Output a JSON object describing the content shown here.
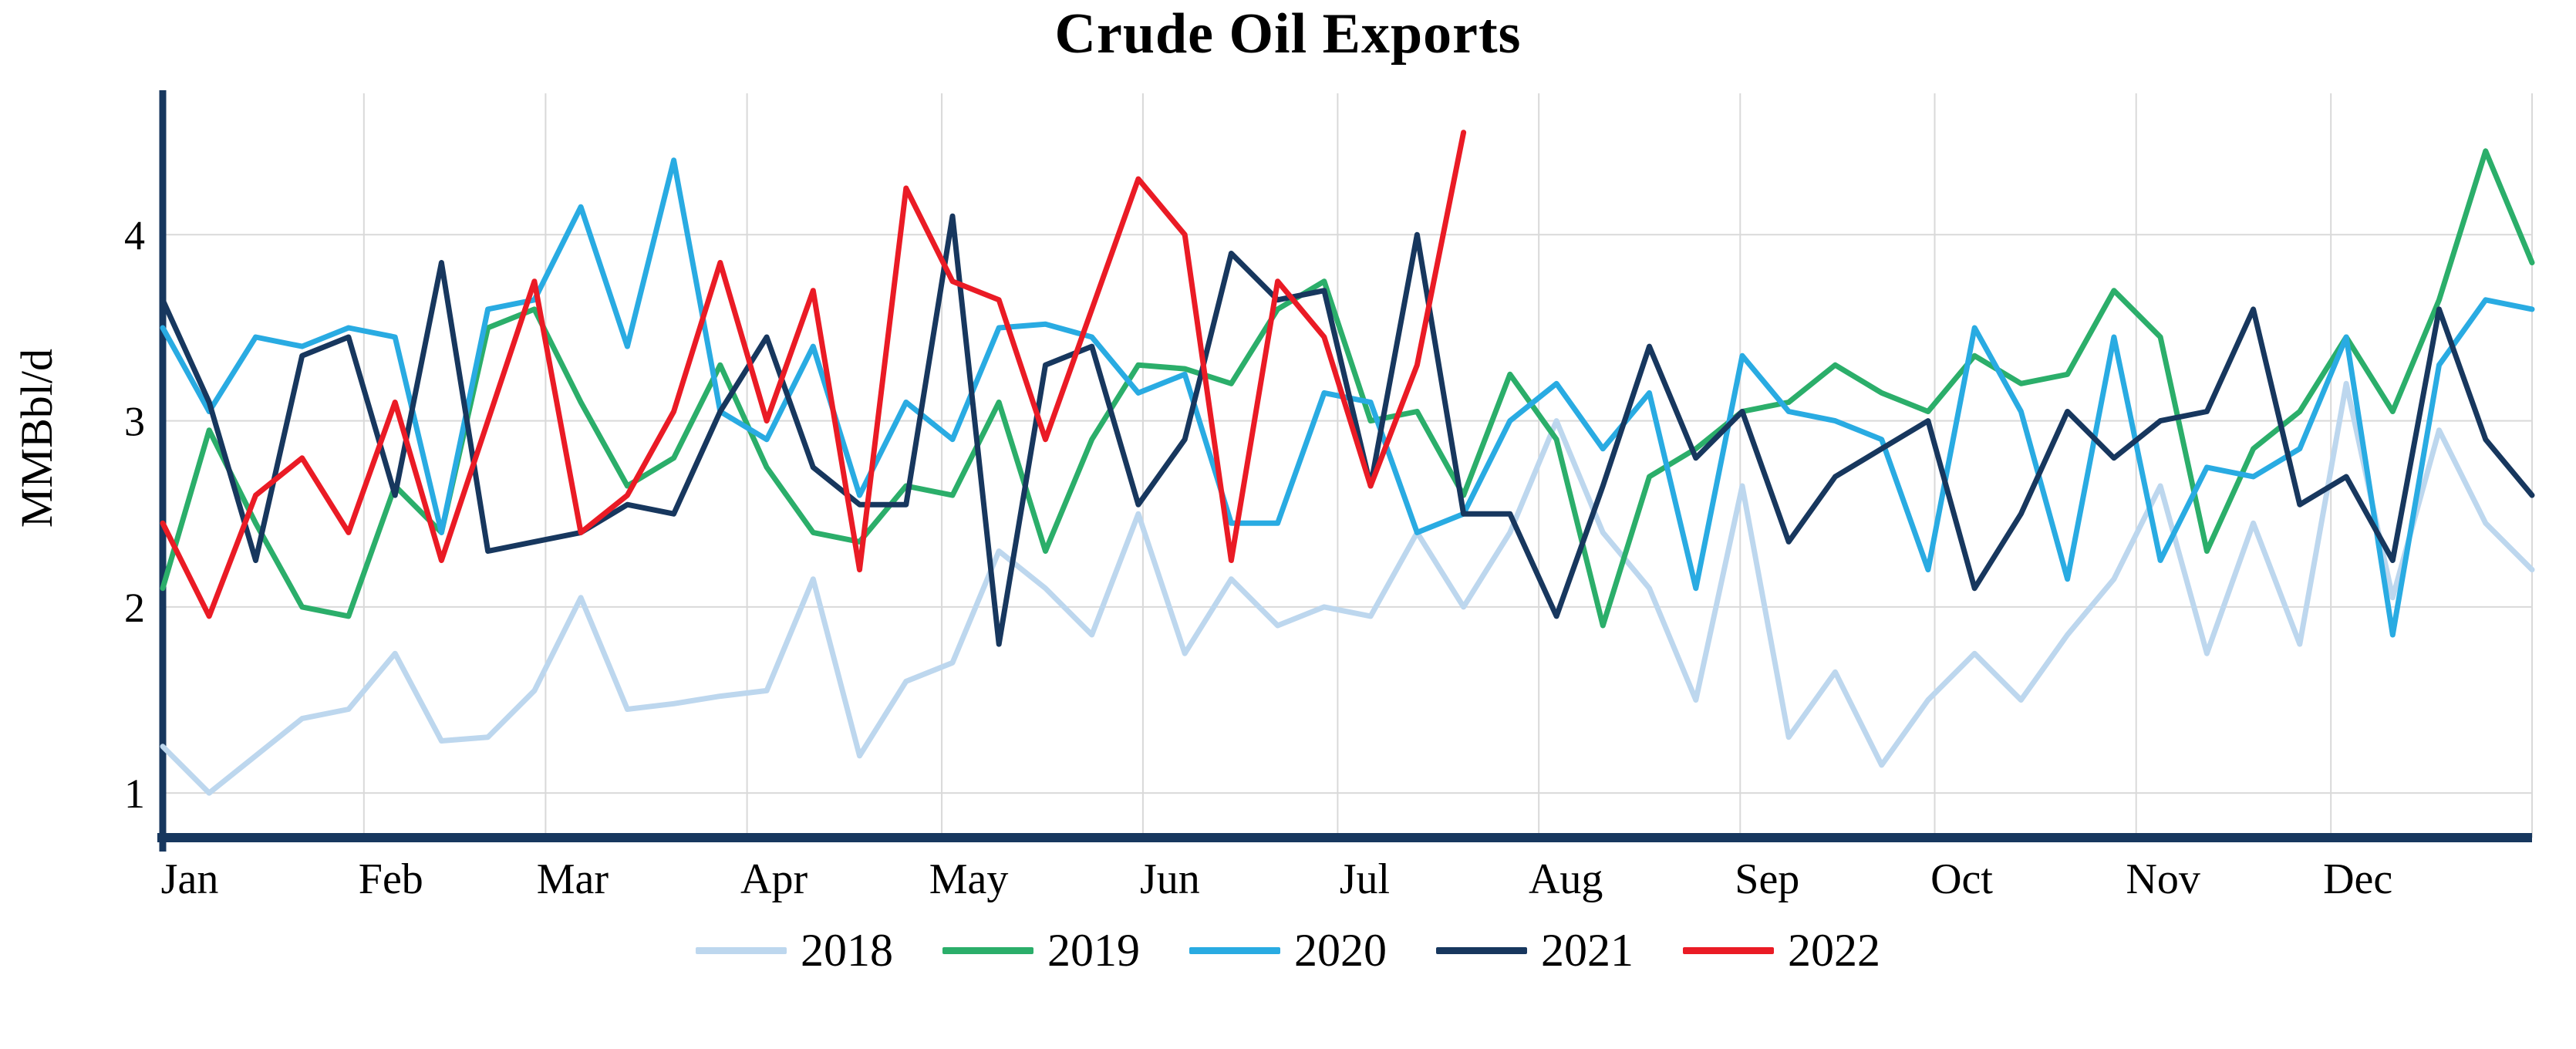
{
  "chart_data": {
    "type": "line",
    "title": "Crude Oil Exports",
    "ylabel": "MMBbl/d",
    "xlabel": "",
    "x_unit": "weekly observations across one calendar year",
    "xtick_labels": [
      "Jan",
      "Feb",
      "Mar",
      "Apr",
      "May",
      "Jun",
      "Jul",
      "Aug",
      "Sep",
      "Oct",
      "Nov",
      "Dec"
    ],
    "month_fracs": [
      0,
      0.0849,
      0.1616,
      0.2466,
      0.3288,
      0.4137,
      0.4959,
      0.5808,
      0.6658,
      0.7479,
      0.8329,
      0.9151
    ],
    "ytick_values": [
      1,
      2,
      3,
      4
    ],
    "ylim": [
      0.76,
      4.76
    ],
    "points_per_year": 52,
    "grid": true,
    "grid_color": "#d9d9d9",
    "axis_color": "#17375e",
    "background": "#ffffff",
    "legend_position": "bottom",
    "series": [
      {
        "name": "2018",
        "color": "#bdd7ee",
        "values": [
          1.25,
          1.0,
          1.2,
          1.4,
          1.45,
          1.75,
          1.28,
          1.3,
          1.55,
          2.05,
          1.45,
          1.48,
          1.52,
          1.55,
          2.15,
          1.2,
          1.6,
          1.7,
          2.3,
          2.1,
          1.85,
          2.5,
          1.75,
          2.15,
          1.9,
          2.0,
          1.95,
          2.4,
          2.0,
          2.4,
          3.0,
          2.4,
          2.1,
          1.5,
          2.65,
          1.3,
          1.65,
          1.15,
          1.5,
          1.75,
          1.5,
          1.85,
          2.15,
          2.65,
          1.75,
          2.45,
          1.8,
          3.2,
          2.05,
          2.95,
          2.45,
          2.2
        ]
      },
      {
        "name": "2019",
        "color": "#2bae6a",
        "values": [
          2.1,
          2.95,
          2.45,
          2.0,
          1.95,
          2.65,
          2.4,
          3.5,
          3.6,
          3.1,
          2.65,
          2.8,
          3.3,
          2.75,
          2.4,
          2.35,
          2.65,
          2.6,
          3.1,
          2.3,
          2.9,
          3.3,
          3.28,
          3.2,
          3.6,
          3.75,
          3.0,
          3.05,
          2.6,
          3.25,
          2.9,
          1.9,
          2.7,
          2.85,
          3.05,
          3.1,
          3.3,
          3.15,
          3.05,
          3.35,
          3.2,
          3.25,
          3.7,
          3.45,
          2.3,
          2.85,
          3.05,
          3.45,
          3.05,
          3.65,
          4.45,
          3.85
        ]
      },
      {
        "name": "2020",
        "color": "#29abe2",
        "values": [
          3.5,
          3.05,
          3.45,
          3.4,
          3.5,
          3.45,
          2.4,
          3.6,
          3.65,
          4.15,
          3.4,
          4.4,
          3.05,
          2.9,
          3.4,
          2.6,
          3.1,
          2.9,
          3.5,
          3.52,
          3.45,
          3.15,
          3.25,
          2.45,
          2.45,
          3.15,
          3.1,
          2.4,
          2.5,
          3.0,
          3.2,
          2.85,
          3.15,
          2.1,
          3.35,
          3.05,
          3.0,
          2.9,
          2.2,
          3.5,
          3.05,
          2.15,
          3.45,
          2.25,
          2.75,
          2.7,
          2.85,
          3.45,
          1.85,
          3.3,
          3.65,
          3.6
        ]
      },
      {
        "name": "2021",
        "color": "#17375e",
        "values": [
          3.65,
          3.1,
          2.25,
          3.35,
          3.45,
          2.6,
          3.85,
          2.3,
          2.35,
          2.4,
          2.55,
          2.5,
          3.05,
          3.45,
          2.75,
          2.55,
          2.55,
          4.1,
          1.8,
          3.3,
          3.4,
          2.55,
          2.9,
          3.9,
          3.65,
          3.7,
          2.65,
          4.0,
          2.5,
          2.5,
          1.95,
          2.65,
          3.4,
          2.8,
          3.05,
          2.35,
          2.7,
          2.85,
          3.0,
          2.1,
          2.5,
          3.05,
          2.8,
          3.0,
          3.05,
          3.6,
          2.55,
          2.7,
          2.25,
          3.6,
          2.9,
          2.6
        ]
      },
      {
        "name": "2022",
        "color": "#ea1b25",
        "values": [
          2.45,
          1.95,
          2.6,
          2.8,
          2.4,
          3.1,
          2.25,
          3.0,
          3.75,
          2.4,
          2.6,
          3.05,
          3.85,
          3.0,
          3.7,
          2.2,
          4.25,
          3.75,
          3.65,
          2.9,
          3.6,
          4.3,
          4.0,
          2.25,
          3.75,
          3.45,
          2.65,
          3.3,
          4.55
        ]
      }
    ]
  }
}
